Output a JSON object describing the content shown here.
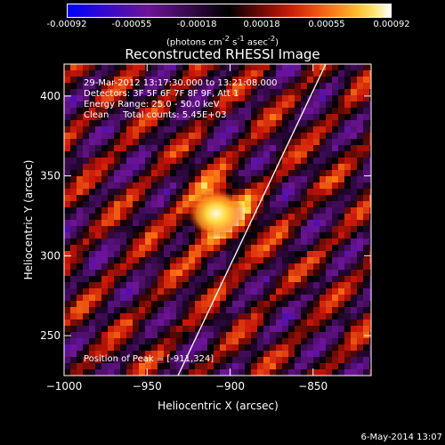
{
  "colorbar": {
    "ticks": [
      "-0.00092",
      "-0.00055",
      "-0.00018",
      "0.00018",
      "0.00055",
      "0.00092"
    ],
    "units_text": "(photons cm",
    "units_sup1": "-2",
    "units_mid": " s",
    "units_sup2": "-1",
    "units_mid2": " asec",
    "units_sup3": "-2",
    "units_end": ")"
  },
  "title": "Reconstructed RHESSI Image",
  "info": {
    "line1": "29-Mar-2012 13:17:30.000 to 13:21:08.000",
    "line2": "Detectors: 3F 5F 6F 7F 8F 9F, Att 1",
    "line3": "Energy Range: 25.0 - 50.0 keV",
    "line4": "Clean     Total counts: 5.45E+03"
  },
  "peak_label": "Position of Peak = [-911,324]",
  "x_axis": {
    "title": "Heliocentric X (arcsec)",
    "ticks": [
      {
        "value": -1000,
        "label": "−1000"
      },
      {
        "value": -950,
        "label": "−950"
      },
      {
        "value": -900,
        "label": "−900"
      },
      {
        "value": -850,
        "label": "−850"
      }
    ],
    "range": [
      -1000,
      -815
    ]
  },
  "y_axis": {
    "title": "Heliocentric Y (arcsec)",
    "ticks": [
      {
        "value": 250,
        "label": "250"
      },
      {
        "value": 300,
        "label": "300"
      },
      {
        "value": 350,
        "label": "350"
      },
      {
        "value": 400,
        "label": "400"
      }
    ],
    "range": [
      225,
      420
    ]
  },
  "peak": {
    "x": -911,
    "y": 324
  },
  "colors": {
    "background": "#000000",
    "limb": "#ffffff",
    "text": "#ffffff"
  },
  "timestamp": "6-May-2014 13:07"
}
